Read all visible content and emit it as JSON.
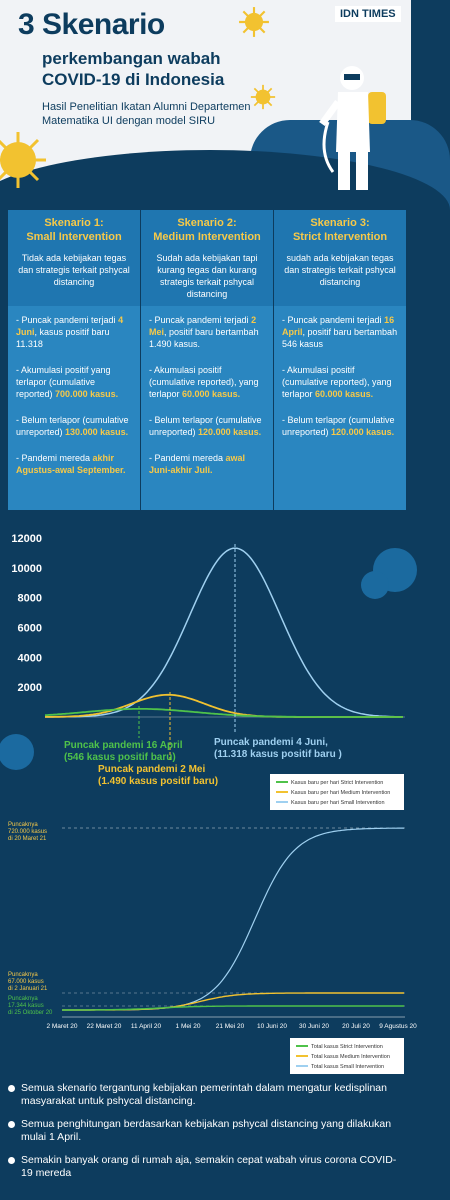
{
  "header": {
    "title": "3 Skenario",
    "subtitle": "perkembangan wabah COVID-19 di Indonesia",
    "description": "Hasil Penelitian Ikatan Alumni Departemen Matematika UI dengan model SIRU",
    "logo": "IDN TIMES"
  },
  "scenarios": [
    {
      "title1": "Skenario 1:",
      "title2": "Small Intervention",
      "desc": "Tidak ada kebijakan tegas dan strategis terkait pshycal distancing",
      "peak_a": "- Puncak pandemi terjadi",
      "peak_hl": "4 Juni",
      "peak_b": ", kasus positif baru 11.318",
      "cum_a": "- Akumulasi positif yang terlapor (cumulative reported)",
      "cum_hl": "700.000 kasus.",
      "unrep_a": "- Belum terlapor (cumulative unreported)",
      "unrep_hl": "130.000 kasus.",
      "end_a": "- Pandemi mereda ",
      "end_hl": "akhir Agustus-awal September."
    },
    {
      "title1": "Skenario 2:",
      "title2": "Medium Intervention",
      "desc": "Sudah ada kebijakan tapi kurang tegas dan kurang strategis terkait pshycal distancing",
      "peak_a": "- Puncak pandemi terjadi",
      "peak_hl": "2 Mei",
      "peak_b": ", positif baru bertambah 1.490 kasus.",
      "cum_a": "- Akumulasi positif (cumulative reported), yang terlapor",
      "cum_hl": "60.000 kasus.",
      "unrep_a": "- Belum terlapor (cumulative unreported)",
      "unrep_hl": "120.000 kasus.",
      "end_a": "- Pandemi mereda ",
      "end_hl": "awal Juni-akhir Juli."
    },
    {
      "title1": "Skenario 3:",
      "title2": "Strict Intervention",
      "desc": "sudah ada kebijakan tegas dan strategis terkait pshycal distancing",
      "peak_a": "- Puncak pandemi terjadi",
      "peak_hl": "16 April",
      "peak_b": ", positif baru bertambah 546 kasus",
      "cum_a": "- Akumulasi positif (cumulative reported), yang terlapor",
      "cum_hl": "60.000 kasus.",
      "unrep_a": "- Belum terlapor (cumulative unreported)",
      "unrep_hl": "120.000 kasus.",
      "end_a": "",
      "end_hl": ""
    }
  ],
  "colors": {
    "strict": "#4fc24a",
    "medium": "#f2c230",
    "small": "#9fd0f0",
    "accent": "#f7c948",
    "bg": "#0d3c5e"
  },
  "chart_data": [
    {
      "type": "line",
      "yticks": [
        2000,
        4000,
        6000,
        8000,
        10000,
        12000
      ],
      "ylim": [
        0,
        12000
      ],
      "series": [
        {
          "name": "Kasus baru per hari Strict Intervention",
          "peak": 546
        },
        {
          "name": "Kasus baru per hari Medium Intervention",
          "peak": 1490
        },
        {
          "name": "Kasus baru per hari Small Intervention",
          "peak": 11318
        }
      ],
      "annotations": {
        "strict": "Puncak pandemi 16 April (546 kasus positif baru)",
        "medium": "Puncak pandemi 2 Mei (1.490 kasus positif baru)",
        "small": "Puncak pandemi 4 Juni, (11.318 kasus positif baru )"
      }
    },
    {
      "type": "line",
      "categories": [
        "2 Maret 20",
        "22 Maret 20",
        "11 April 20",
        "1 Mei 20",
        "21 Mei 20",
        "10 Juni 20",
        "30 Juni 20",
        "20 Juli 20",
        "9 Agustus 20"
      ],
      "series": [
        {
          "name": "Total kasus Strict Intervention"
        },
        {
          "name": "Total kasus Medium Intervention"
        },
        {
          "name": "Total kasus Small Intervention"
        }
      ],
      "annotations": {
        "small": "Puncaknya 720.000 kasus di 20 Maret 21",
        "medium": "Puncaknya 67.000 kasus di 2 Januari 21",
        "strict": "Puncaknya 17.344 kasus di 25 Oktober 20"
      }
    }
  ],
  "notes": [
    "Semua skenario tergantung kebijakan pemerintah dalam mengatur kedisplinan masyarakat untuk pshycal distancing.",
    "Semua penghitungan berdasarkan kebijakan pshycal distancing yang dilakukan mulai 1 April.",
    "Semakin banyak orang di rumah aja, semakin cepat wabah virus corona COVID-19 mereda"
  ]
}
